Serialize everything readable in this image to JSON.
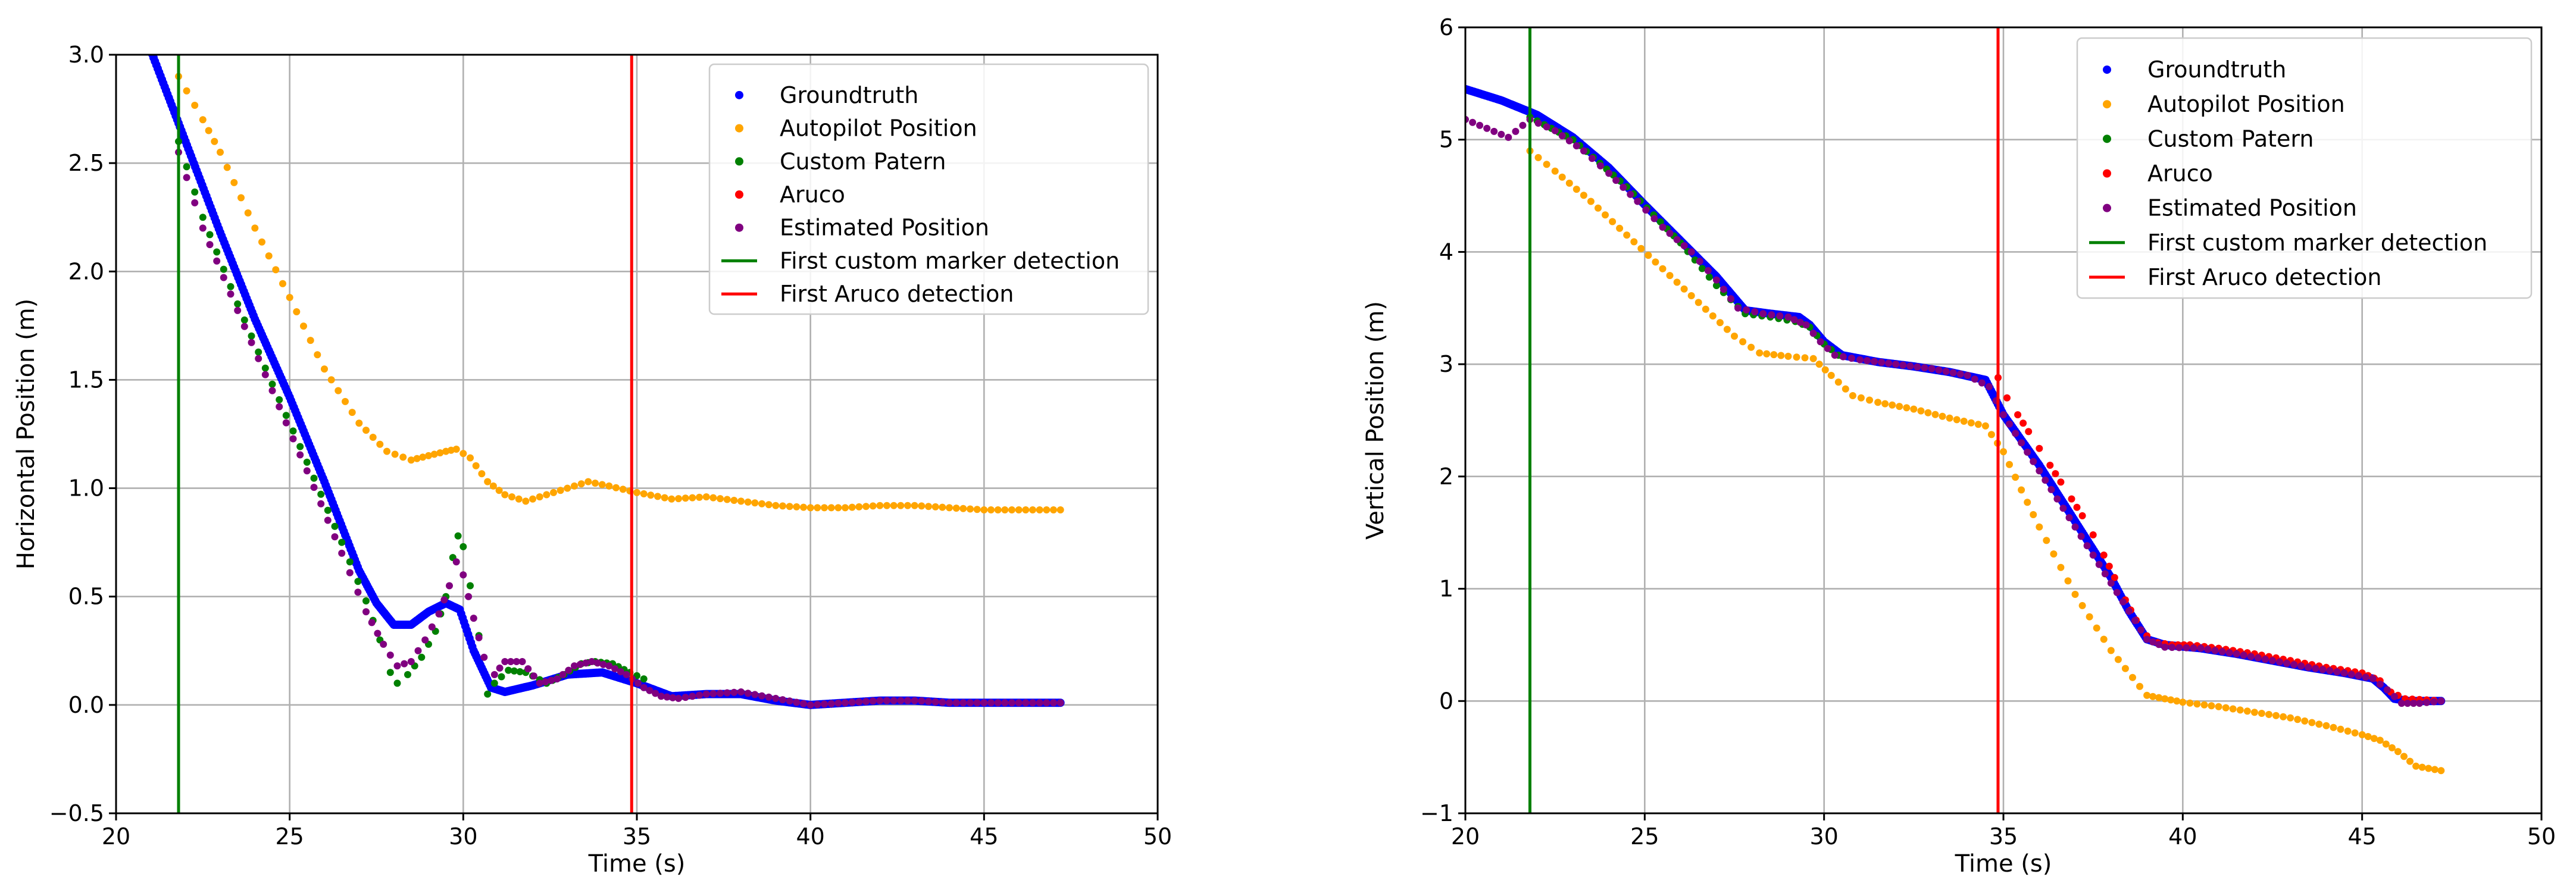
{
  "chart_data": [
    {
      "type": "scatter",
      "title": "",
      "xlabel": "Time (s)",
      "ylabel": "Horizontal Position (m)",
      "xlim": [
        20,
        50
      ],
      "ylim": [
        -0.5,
        3.0
      ],
      "xticks": [
        20,
        25,
        30,
        35,
        40,
        45,
        50
      ],
      "xtick_labels": [
        "20",
        "25",
        "30",
        "35",
        "40",
        "45",
        "50"
      ],
      "yticks": [
        -0.5,
        0.0,
        0.5,
        1.0,
        1.5,
        2.0,
        2.5,
        3.0
      ],
      "ytick_labels": [
        "−0.5",
        "0.0",
        "0.5",
        "1.0",
        "1.5",
        "2.0",
        "2.5",
        "3.0"
      ],
      "grid": true,
      "legend_position": "top-right",
      "series": [
        {
          "name": "Groundtruth",
          "color": "#0000ff",
          "style": "dense-dots",
          "x": [
            21.0,
            22.0,
            23.0,
            24.0,
            25.0,
            26.0,
            27.0,
            27.5,
            28.0,
            28.5,
            29.0,
            29.5,
            29.9,
            30.3,
            30.8,
            31.2,
            32.0,
            33.0,
            34.0,
            35.0,
            36.0,
            37.0,
            38.0,
            39.0,
            40.0,
            41.0,
            42.0,
            43.0,
            44.0,
            45.0,
            47.2
          ],
          "y": [
            3.02,
            2.6,
            2.18,
            1.78,
            1.42,
            1.03,
            0.62,
            0.47,
            0.37,
            0.37,
            0.43,
            0.47,
            0.44,
            0.25,
            0.08,
            0.06,
            0.09,
            0.14,
            0.15,
            0.1,
            0.04,
            0.05,
            0.05,
            0.02,
            0.0,
            0.01,
            0.02,
            0.02,
            0.01,
            0.01,
            0.01
          ]
        },
        {
          "name": "Autopilot Position",
          "color": "#ffa500",
          "style": "dots",
          "x": [
            21.8,
            22.5,
            23.0,
            24.0,
            25.0,
            26.0,
            27.0,
            27.8,
            28.5,
            29.0,
            29.5,
            29.8,
            30.2,
            30.7,
            31.2,
            31.8,
            32.4,
            33.0,
            33.6,
            34.2,
            35.0,
            36.0,
            37.0,
            38.0,
            39.0,
            40.0,
            41.0,
            42.0,
            43.0,
            44.0,
            45.0,
            46.0,
            47.2
          ],
          "y": [
            2.9,
            2.7,
            2.55,
            2.2,
            1.88,
            1.55,
            1.3,
            1.17,
            1.13,
            1.15,
            1.17,
            1.18,
            1.14,
            1.03,
            0.97,
            0.94,
            0.97,
            1.0,
            1.03,
            1.01,
            0.98,
            0.95,
            0.96,
            0.94,
            0.92,
            0.91,
            0.91,
            0.92,
            0.92,
            0.91,
            0.9,
            0.9,
            0.9
          ]
        },
        {
          "name": "Custom Patern",
          "color": "#008000",
          "style": "dots",
          "x": [
            21.8,
            22.5,
            23.5,
            24.5,
            25.5,
            26.5,
            27.2,
            27.6,
            27.9,
            28.1,
            28.4,
            28.8,
            29.2,
            29.5,
            29.7,
            29.85,
            30.0,
            30.2,
            30.45,
            30.7,
            30.9,
            31.3,
            31.8,
            32.4,
            32.9,
            33.4,
            33.8,
            34.3,
            34.8,
            35.2
          ],
          "y": [
            2.6,
            2.25,
            1.85,
            1.48,
            1.12,
            0.75,
            0.48,
            0.3,
            0.15,
            0.1,
            0.14,
            0.22,
            0.34,
            0.5,
            0.68,
            0.78,
            0.73,
            0.55,
            0.32,
            0.05,
            0.1,
            0.16,
            0.15,
            0.1,
            0.14,
            0.19,
            0.2,
            0.19,
            0.15,
            0.12
          ]
        },
        {
          "name": "Aruco",
          "color": "#ff0000",
          "style": "dots",
          "x": [],
          "y": []
        },
        {
          "name": "Estimated Position",
          "color": "#800080",
          "style": "dots",
          "x": [
            21.8,
            22.5,
            23.5,
            24.5,
            25.5,
            26.5,
            27.2,
            27.7,
            28.1,
            28.5,
            28.9,
            29.3,
            29.6,
            29.8,
            30.0,
            30.3,
            30.6,
            30.9,
            31.2,
            31.7,
            32.2,
            32.7,
            33.2,
            33.7,
            34.2,
            34.7,
            35.2,
            35.7,
            36.2,
            37.0,
            38.0,
            39.0,
            40.0,
            41.0,
            42.0,
            43.0,
            44.0,
            45.0,
            46.0,
            47.2
          ],
          "y": [
            2.55,
            2.2,
            1.82,
            1.45,
            1.08,
            0.7,
            0.43,
            0.28,
            0.18,
            0.2,
            0.3,
            0.42,
            0.55,
            0.66,
            0.6,
            0.4,
            0.22,
            0.14,
            0.2,
            0.2,
            0.1,
            0.12,
            0.18,
            0.2,
            0.18,
            0.14,
            0.08,
            0.04,
            0.03,
            0.05,
            0.06,
            0.03,
            0.0,
            0.01,
            0.02,
            0.02,
            0.01,
            0.01,
            0.01,
            0.01
          ]
        }
      ],
      "vlines": [
        {
          "name": "First custom marker detection",
          "color": "#008000",
          "x": 21.8
        },
        {
          "name": "First Aruco detection",
          "color": "#ff0000",
          "x": 34.85
        }
      ]
    },
    {
      "type": "scatter",
      "title": "",
      "xlabel": "Time (s)",
      "ylabel": "Vertical Position (m)",
      "xlim": [
        20,
        50
      ],
      "ylim": [
        -1,
        6
      ],
      "xticks": [
        20,
        25,
        30,
        35,
        40,
        45,
        50
      ],
      "xtick_labels": [
        "20",
        "25",
        "30",
        "35",
        "40",
        "45",
        "50"
      ],
      "yticks": [
        -1,
        0,
        1,
        2,
        3,
        4,
        5,
        6
      ],
      "ytick_labels": [
        "−1",
        "0",
        "1",
        "2",
        "3",
        "4",
        "5",
        "6"
      ],
      "grid": true,
      "legend_position": "top-right",
      "series": [
        {
          "name": "Groundtruth",
          "color": "#0000ff",
          "style": "dense-dots",
          "x": [
            20.0,
            21.0,
            22.0,
            23.0,
            24.0,
            25.0,
            26.0,
            27.0,
            27.8,
            28.5,
            29.3,
            29.6,
            30.0,
            30.5,
            31.5,
            32.5,
            33.5,
            34.5,
            35.0,
            36.0,
            37.0,
            38.0,
            38.5,
            39.0,
            39.5,
            40.5,
            41.5,
            42.5,
            43.5,
            44.5,
            45.3,
            45.6,
            45.9,
            46.3,
            47.2
          ],
          "y": [
            5.45,
            5.35,
            5.22,
            5.02,
            4.75,
            4.42,
            4.1,
            3.78,
            3.48,
            3.45,
            3.42,
            3.35,
            3.2,
            3.08,
            3.02,
            2.98,
            2.93,
            2.86,
            2.55,
            2.1,
            1.6,
            1.1,
            0.8,
            0.55,
            0.5,
            0.47,
            0.42,
            0.36,
            0.3,
            0.25,
            0.2,
            0.12,
            0.02,
            0.0,
            0.0
          ]
        },
        {
          "name": "Autopilot Position",
          "color": "#ffa500",
          "style": "dots",
          "x": [
            21.8,
            22.5,
            23.5,
            24.5,
            25.5,
            26.5,
            27.5,
            28.2,
            29.0,
            29.7,
            30.2,
            30.8,
            31.5,
            32.5,
            33.5,
            34.5,
            35.0,
            35.5,
            36.0,
            37.0,
            38.0,
            39.0,
            39.5,
            40.0,
            41.0,
            42.0,
            43.0,
            44.0,
            45.0,
            45.5,
            46.0,
            46.5,
            47.2
          ],
          "y": [
            4.9,
            4.72,
            4.45,
            4.15,
            3.85,
            3.55,
            3.25,
            3.1,
            3.07,
            3.05,
            2.9,
            2.72,
            2.66,
            2.6,
            2.52,
            2.45,
            2.22,
            1.88,
            1.55,
            0.95,
            0.45,
            0.05,
            0.02,
            -0.01,
            -0.05,
            -0.1,
            -0.15,
            -0.22,
            -0.3,
            -0.35,
            -0.45,
            -0.58,
            -0.62
          ]
        },
        {
          "name": "Custom Patern",
          "color": "#008000",
          "style": "dots",
          "x": [
            21.8,
            23.0,
            24.5,
            26.0,
            27.0,
            27.8,
            28.5,
            29.2,
            29.6,
            30.0,
            30.4
          ],
          "y": [
            5.2,
            5.0,
            4.58,
            4.08,
            3.7,
            3.45,
            3.42,
            3.38,
            3.33,
            3.18,
            3.08
          ]
        },
        {
          "name": "Aruco",
          "color": "#ff0000",
          "style": "dots",
          "x": [
            34.85,
            35.1,
            35.4,
            35.7,
            36.0,
            36.3,
            36.6,
            36.9,
            37.2,
            37.5,
            37.8,
            38.1,
            38.4,
            38.7,
            39.0,
            39.3,
            39.7,
            40.2,
            41.0,
            42.0,
            43.0,
            44.0,
            45.0,
            45.5,
            45.8,
            46.2,
            46.8,
            47.2
          ],
          "y": [
            2.88,
            2.7,
            2.55,
            2.4,
            2.25,
            2.1,
            1.95,
            1.8,
            1.65,
            1.48,
            1.3,
            1.1,
            0.9,
            0.72,
            0.58,
            0.52,
            0.5,
            0.5,
            0.47,
            0.42,
            0.36,
            0.3,
            0.25,
            0.18,
            0.08,
            0.02,
            0.01,
            0.0
          ]
        },
        {
          "name": "Estimated Position",
          "color": "#800080",
          "style": "dots",
          "x": [
            20.0,
            20.6,
            21.2,
            21.8,
            22.5,
            23.3,
            24.0,
            24.8,
            25.5,
            26.3,
            27.0,
            27.6,
            28.3,
            29.0,
            29.5,
            29.9,
            30.3,
            31.0,
            32.0,
            33.0,
            34.0,
            34.6,
            35.0,
            35.5,
            36.0,
            36.5,
            37.0,
            37.5,
            38.0,
            38.5,
            39.0,
            39.5,
            40.5,
            41.5,
            42.5,
            43.5,
            44.5,
            45.3,
            45.7,
            46.1,
            46.6,
            47.2
          ],
          "y": [
            5.18,
            5.1,
            5.02,
            5.18,
            5.08,
            4.9,
            4.7,
            4.45,
            4.22,
            4.0,
            3.75,
            3.5,
            3.45,
            3.42,
            3.35,
            3.2,
            3.08,
            3.04,
            3.0,
            2.96,
            2.9,
            2.8,
            2.55,
            2.3,
            2.05,
            1.8,
            1.55,
            1.3,
            1.05,
            0.8,
            0.55,
            0.48,
            0.47,
            0.42,
            0.36,
            0.3,
            0.25,
            0.2,
            0.1,
            -0.02,
            -0.02,
            0.0
          ]
        }
      ],
      "vlines": [
        {
          "name": "First custom marker detection",
          "color": "#008000",
          "x": 21.8
        },
        {
          "name": "First Aruco detection",
          "color": "#ff0000",
          "x": 34.85
        }
      ]
    }
  ]
}
